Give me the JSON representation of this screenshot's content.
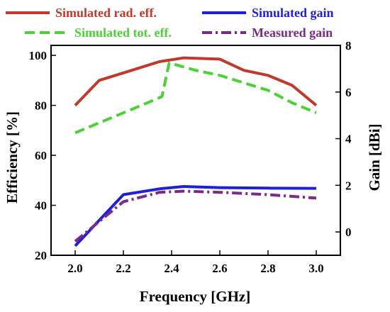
{
  "chart_data": {
    "type": "line",
    "xlabel": "Frequency [GHz]",
    "ylabel_left": "Efficiency  [%]",
    "ylabel_right": "Gain [dBi]",
    "xlim": [
      1.9,
      3.1
    ],
    "ylim_left": [
      20,
      104
    ],
    "ylim_right": [
      -1,
      8
    ],
    "x_ticks": [
      "2.0",
      "2.2",
      "2.4",
      "2.6",
      "2.8",
      "3.0"
    ],
    "y_left_ticks": [
      "20",
      "40",
      "60",
      "80",
      "100"
    ],
    "y_right_ticks": [
      "0",
      "2",
      "4",
      "6",
      "8"
    ],
    "legend_position": "top",
    "series": [
      {
        "name": "Simulated rad. eff.",
        "axis": "left",
        "color": "#c0392b",
        "style": "solid",
        "x": [
          2.0,
          2.1,
          2.2,
          2.3,
          2.35,
          2.45,
          2.6,
          2.7,
          2.8,
          2.9,
          3.0
        ],
        "y": [
          80,
          90,
          93,
          96,
          97.5,
          99,
          98.5,
          94,
          92,
          88,
          80
        ]
      },
      {
        "name": "Simulated tot. eff.",
        "axis": "left",
        "color": "#4cd137",
        "style": "dashed",
        "x": [
          2.0,
          2.1,
          2.2,
          2.3,
          2.36,
          2.39,
          2.5,
          2.6,
          2.7,
          2.8,
          2.9,
          3.0
        ],
        "y": [
          69,
          73,
          77,
          81,
          83.5,
          97,
          94,
          92,
          89,
          86,
          81,
          77
        ]
      },
      {
        "name": "Simulated gain",
        "axis": "right",
        "color": "#1e1edc",
        "style": "solid",
        "x": [
          2.0,
          2.2,
          2.35,
          2.45,
          2.6,
          2.8,
          3.0
        ],
        "y": [
          -0.6,
          1.6,
          1.85,
          1.95,
          1.9,
          1.88,
          1.87
        ]
      },
      {
        "name": "Measured gain",
        "axis": "right",
        "color": "#7b2a8c",
        "style": "dashdot",
        "x": [
          2.0,
          2.2,
          2.35,
          2.45,
          2.6,
          2.8,
          3.0
        ],
        "y": [
          -0.4,
          1.3,
          1.7,
          1.75,
          1.7,
          1.6,
          1.45
        ]
      }
    ]
  }
}
